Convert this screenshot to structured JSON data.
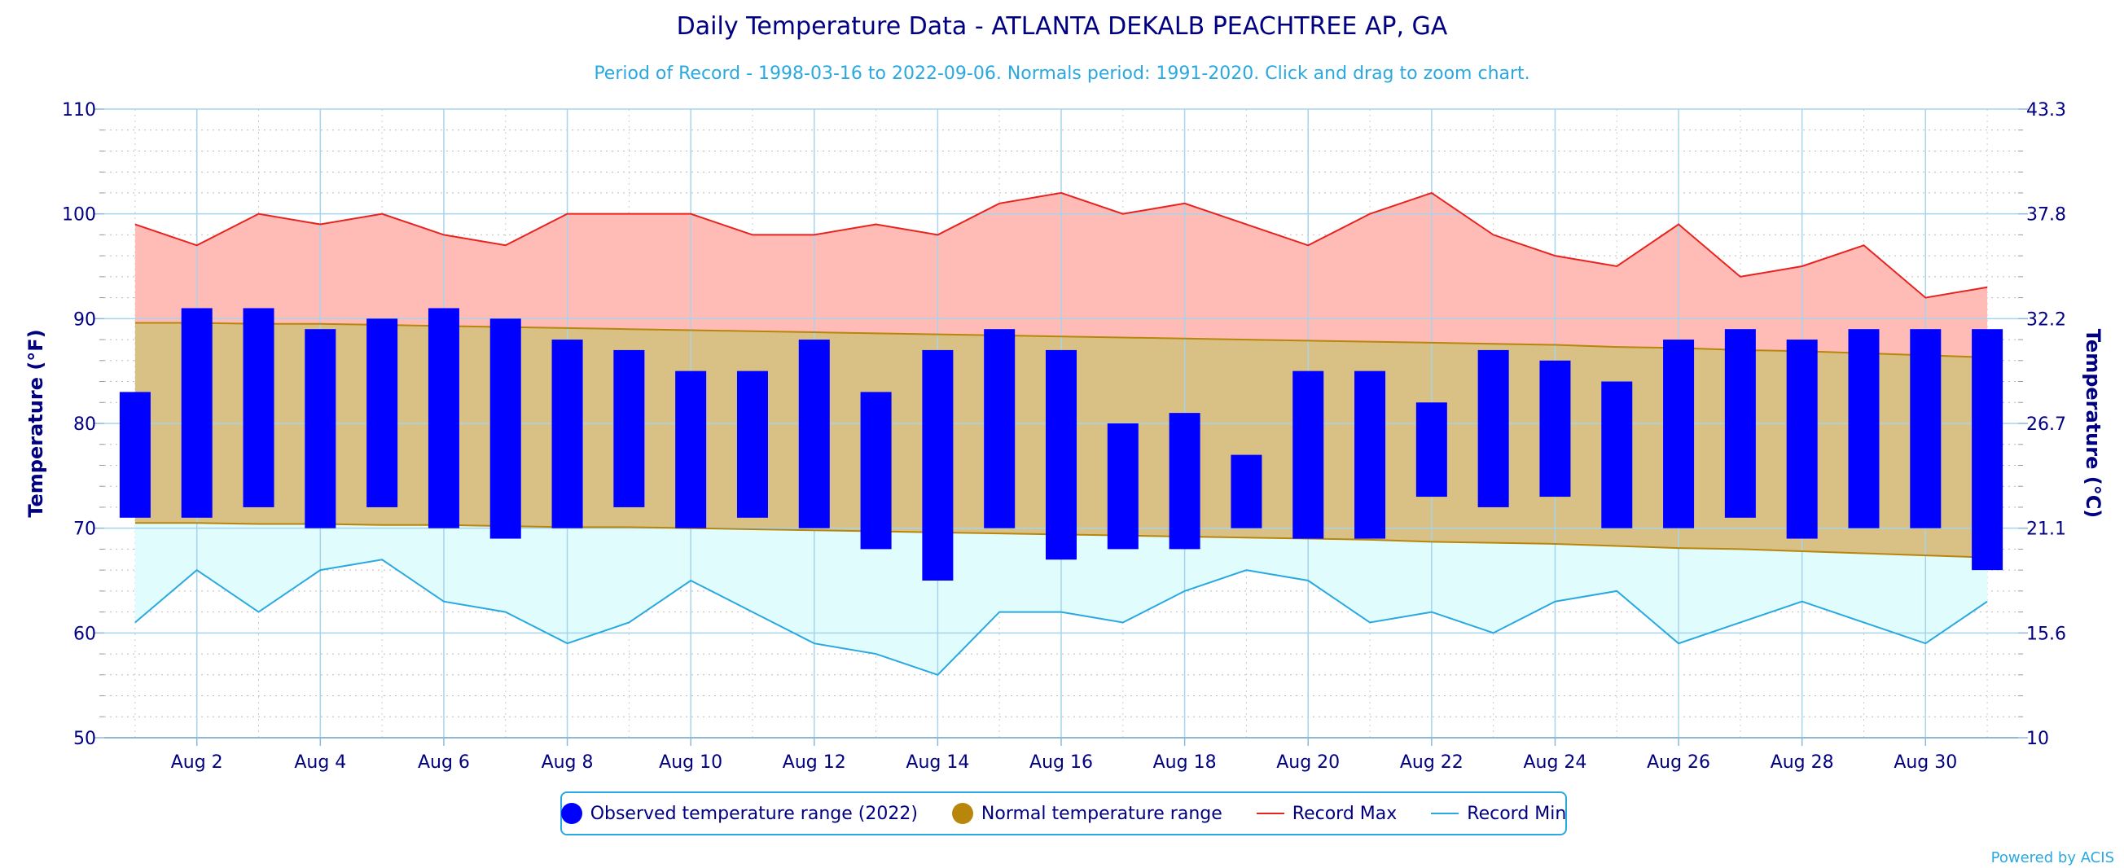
{
  "chart_data": {
    "type": "bar",
    "title": "Daily Temperature Data - ATLANTA DEKALB PEACHTREE AP, GA",
    "subtitle": "Period of Record - 1998-03-16 to 2022-09-06. Normals period: 1991-2020. Click and drag to zoom chart.",
    "ylabel": "Temperature (°F)",
    "ylabel_right": "Temperature (°C)",
    "ylim": [
      50,
      110
    ],
    "yticks": [
      "50",
      "60",
      "70",
      "80",
      "90",
      "100",
      "110"
    ],
    "yticks_right": [
      "10",
      "15.6",
      "21.1",
      "26.7",
      "32.2",
      "37.8",
      "43.3"
    ],
    "xlim": [
      0.5,
      31.5
    ],
    "xticks": [
      {
        "day": 2,
        "label": "Aug 2"
      },
      {
        "day": 4,
        "label": "Aug 4"
      },
      {
        "day": 6,
        "label": "Aug 6"
      },
      {
        "day": 8,
        "label": "Aug 8"
      },
      {
        "day": 10,
        "label": "Aug 10"
      },
      {
        "day": 12,
        "label": "Aug 12"
      },
      {
        "day": 14,
        "label": "Aug 14"
      },
      {
        "day": 16,
        "label": "Aug 16"
      },
      {
        "day": 18,
        "label": "Aug 18"
      },
      {
        "day": 20,
        "label": "Aug 20"
      },
      {
        "day": 22,
        "label": "Aug 22"
      },
      {
        "day": 24,
        "label": "Aug 24"
      },
      {
        "day": 26,
        "label": "Aug 26"
      },
      {
        "day": 28,
        "label": "Aug 28"
      },
      {
        "day": 30,
        "label": "Aug 30"
      }
    ],
    "days": [
      1,
      2,
      3,
      4,
      5,
      6,
      7,
      8,
      9,
      10,
      11,
      12,
      13,
      14,
      15,
      16,
      17,
      18,
      19,
      20,
      21,
      22,
      23,
      24,
      25,
      26,
      27,
      28,
      29,
      30,
      31
    ],
    "series": [
      {
        "name": "Observed temperature range (2022)",
        "color": "#0000ff",
        "low": [
          71,
          71,
          72,
          70,
          72,
          70,
          69,
          70,
          72,
          70,
          71,
          70,
          68,
          65,
          70,
          67,
          68,
          68,
          70,
          69,
          69,
          73,
          72,
          73,
          70,
          70,
          71,
          69,
          70,
          70,
          66
        ],
        "high": [
          83,
          91,
          91,
          89,
          90,
          91,
          90,
          88,
          87,
          85,
          85,
          88,
          83,
          87,
          89,
          87,
          80,
          81,
          77,
          85,
          85,
          82,
          87,
          86,
          84,
          88,
          89,
          88,
          89,
          89,
          89
        ]
      },
      {
        "name": "Normal temperature range",
        "color": "#b8860b",
        "low": [
          70.5,
          70.5,
          70.4,
          70.4,
          70.3,
          70.3,
          70.2,
          70.1,
          70.1,
          70.0,
          69.9,
          69.8,
          69.7,
          69.6,
          69.5,
          69.4,
          69.3,
          69.2,
          69.1,
          69.0,
          68.9,
          68.7,
          68.6,
          68.5,
          68.3,
          68.1,
          68.0,
          67.8,
          67.6,
          67.4,
          67.2
        ],
        "high": [
          89.6,
          89.6,
          89.5,
          89.5,
          89.4,
          89.3,
          89.2,
          89.1,
          89.0,
          88.9,
          88.8,
          88.7,
          88.6,
          88.5,
          88.4,
          88.3,
          88.2,
          88.1,
          88.0,
          87.9,
          87.8,
          87.7,
          87.6,
          87.5,
          87.3,
          87.2,
          87.0,
          86.9,
          86.7,
          86.5,
          86.3
        ]
      },
      {
        "name": "Record Max",
        "color": "#e8231f",
        "values": [
          99,
          97,
          100,
          99,
          100,
          98,
          97,
          100,
          100,
          100,
          98,
          98,
          99,
          98,
          101,
          102,
          100,
          101,
          99,
          97,
          100,
          102,
          98,
          96,
          95,
          99,
          94,
          95,
          97,
          92,
          93
        ]
      },
      {
        "name": "Record Min",
        "color": "#29a9e0",
        "values": [
          61,
          66,
          62,
          66,
          67,
          63,
          62,
          59,
          61,
          65,
          62,
          59,
          58,
          56,
          62,
          62,
          61,
          64,
          66,
          65,
          61,
          62,
          60,
          63,
          64,
          59,
          61,
          63,
          61,
          59,
          63
        ]
      }
    ],
    "colors": {
      "record_max_fill": "#ffbcb6",
      "normal_fill": "#d9c085",
      "record_min_fill": "#e0fcfc",
      "grid": "#a7d4ec",
      "axis_text": "#000080",
      "subtitle": "#29a9e0"
    },
    "grid": true,
    "legend_placement": "bottom"
  },
  "credit": "Powered by ACIS"
}
